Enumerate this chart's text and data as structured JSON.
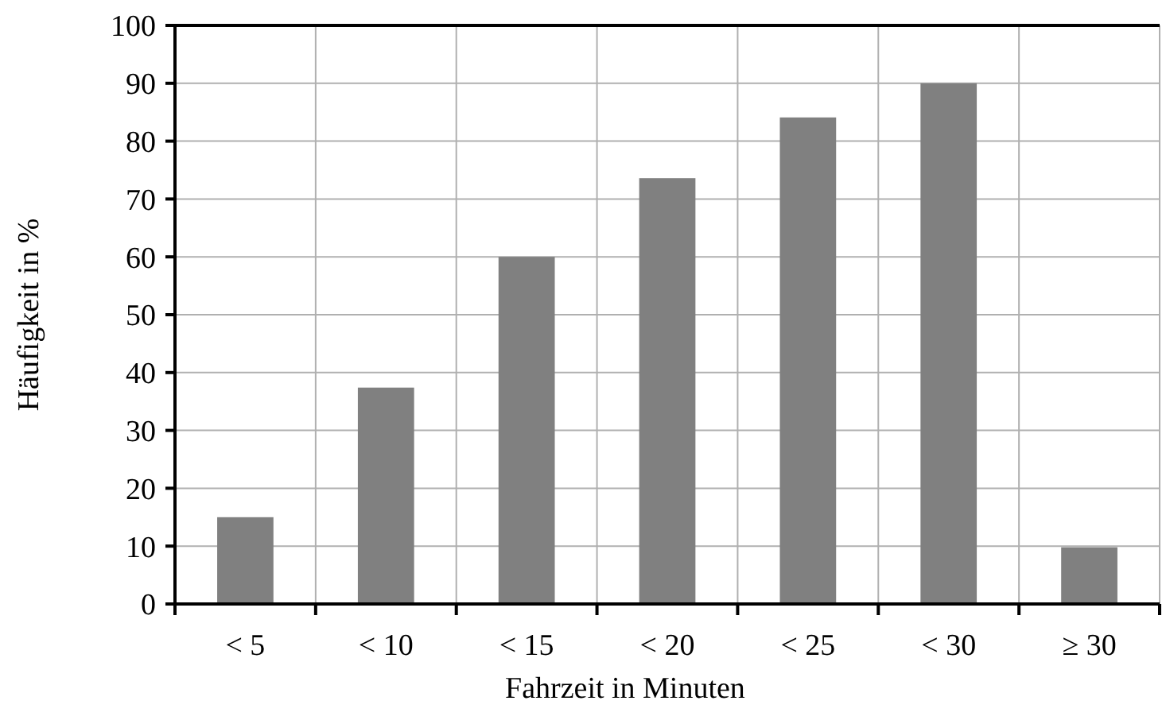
{
  "chart_data": {
    "type": "bar",
    "xlabel": "Fahrzeit in Minuten",
    "ylabel": "Häufigkeit in %",
    "categories": [
      "< 5",
      "< 10",
      "< 15",
      "< 20",
      "< 25",
      "< 30",
      "≥ 30"
    ],
    "values": [
      15,
      37.4,
      60,
      73.6,
      84.1,
      90,
      9.8
    ],
    "color": "#808080",
    "ylim": [
      0,
      100
    ],
    "yticks": [
      0,
      10,
      20,
      30,
      40,
      50,
      60,
      70,
      80,
      90,
      100
    ],
    "grid": true
  }
}
